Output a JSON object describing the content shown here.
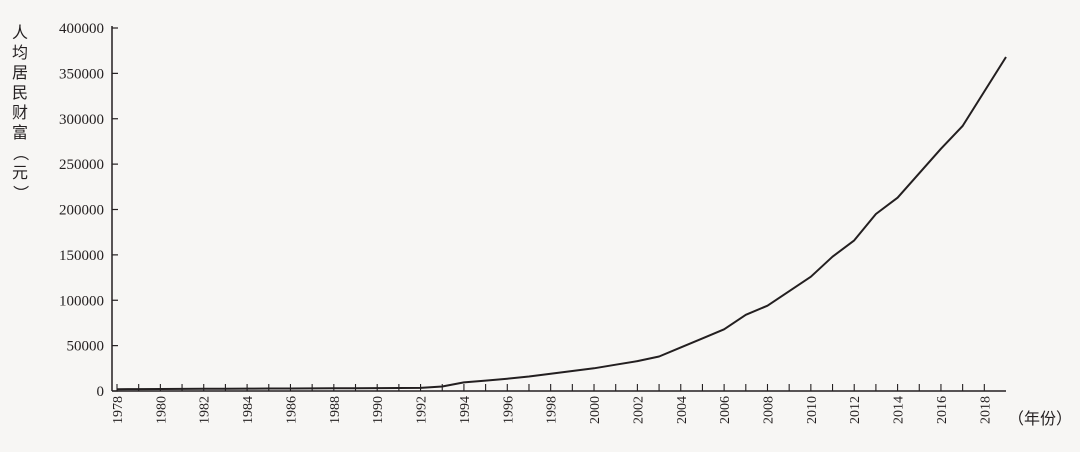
{
  "chart_data": {
    "type": "line",
    "ylabel": "人均居民财富（元）",
    "xlabel": "（年份）",
    "ylim": [
      0,
      400000
    ],
    "xlim": [
      1978,
      2019
    ],
    "yticks": [
      "0",
      "50000",
      "100000",
      "150000",
      "200000",
      "250000",
      "300000",
      "350000",
      "400000"
    ],
    "xticks": [
      "1978",
      "1980",
      "1982",
      "1984",
      "1986",
      "1988",
      "1990",
      "1992",
      "1994",
      "1996",
      "1998",
      "2000",
      "2002",
      "2004",
      "2006",
      "2008",
      "2010",
      "2012",
      "2014",
      "2016",
      "2018"
    ],
    "grid": false,
    "series": [
      {
        "x": [
          1978,
          1979,
          1980,
          1981,
          1982,
          1983,
          1984,
          1985,
          1986,
          1987,
          1988,
          1989,
          1990,
          1991,
          1992,
          1993,
          1994,
          1995,
          1996,
          1997,
          1998,
          1999,
          2000,
          2001,
          2002,
          2003,
          2004,
          2005,
          2006,
          2007,
          2008,
          2009,
          2010,
          2011,
          2012,
          2013,
          2014,
          2015,
          2016,
          2017,
          2018,
          2019
        ],
        "values": [
          2000,
          2100,
          2200,
          2300,
          2400,
          2500,
          2600,
          2700,
          2800,
          2900,
          3000,
          3100,
          3200,
          3300,
          3400,
          5000,
          9500,
          11500,
          13500,
          16000,
          19000,
          22000,
          25000,
          29000,
          33000,
          38000,
          48000,
          58000,
          68000,
          84000,
          94000,
          110000,
          126000,
          148000,
          166000,
          195000,
          213000,
          240000,
          267000,
          292000,
          330000,
          368000
        ]
      }
    ]
  }
}
